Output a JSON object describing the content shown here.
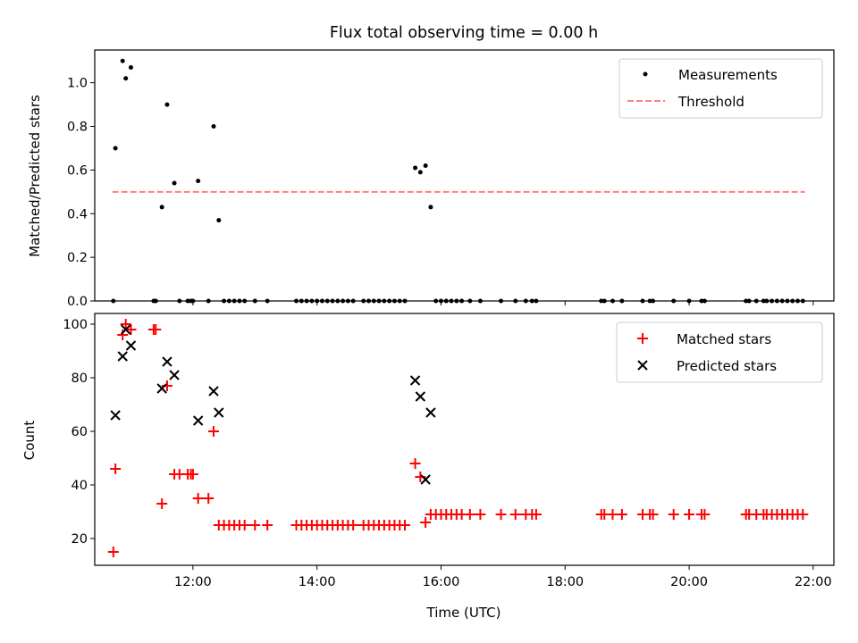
{
  "title": "Flux total observing time = 0.00 h",
  "chart_data": [
    {
      "type": "scatter",
      "ylabel": "Matched/Predicted stars",
      "ylim": [
        0,
        1.15
      ],
      "yticks": [
        "0.0",
        "0.2",
        "0.4",
        "0.6",
        "0.8",
        "1.0"
      ],
      "xlim": [
        "10:25",
        "22:20"
      ],
      "legend_position": "top-right",
      "legend": [
        {
          "label": "Measurements",
          "marker": "dot",
          "color": "#000000"
        },
        {
          "label": "Threshold",
          "marker": "dashed-line",
          "color": "#ff7f7f"
        }
      ],
      "threshold": {
        "value": 0.5,
        "x_start": "10:42",
        "x_end": "21:52",
        "color": "#ff7f7f"
      },
      "series": [
        {
          "marker": "dot",
          "color": "#000000",
          "points": [
            [
              "10:43",
              0
            ],
            [
              "10:45",
              0.7
            ],
            [
              "10:52",
              1.1
            ],
            [
              "10:55",
              1.02
            ],
            [
              "11:00",
              1.07
            ],
            [
              "11:22",
              0
            ],
            [
              "11:24",
              0
            ],
            [
              "11:30",
              0.43
            ],
            [
              "11:35",
              0.9
            ],
            [
              "11:42",
              0.54
            ],
            [
              "11:47",
              0
            ],
            [
              "11:55",
              0
            ],
            [
              "11:58",
              0
            ],
            [
              "12:00",
              0
            ],
            [
              "12:05",
              0.55
            ],
            [
              "12:15",
              0
            ],
            [
              "12:20",
              0.8
            ],
            [
              "12:25",
              0.37
            ],
            [
              "12:30",
              0
            ],
            [
              "12:35",
              0
            ],
            [
              "12:40",
              0
            ],
            [
              "12:45",
              0
            ],
            [
              "12:50",
              0
            ],
            [
              "13:00",
              0
            ],
            [
              "13:12",
              0
            ],
            [
              "13:40",
              0
            ],
            [
              "13:45",
              0
            ],
            [
              "13:50",
              0
            ],
            [
              "13:55",
              0
            ],
            [
              "14:00",
              0
            ],
            [
              "14:05",
              0
            ],
            [
              "14:10",
              0
            ],
            [
              "14:15",
              0
            ],
            [
              "14:20",
              0
            ],
            [
              "14:25",
              0
            ],
            [
              "14:30",
              0
            ],
            [
              "14:35",
              0
            ],
            [
              "14:45",
              0
            ],
            [
              "14:50",
              0
            ],
            [
              "14:55",
              0
            ],
            [
              "15:00",
              0
            ],
            [
              "15:05",
              0
            ],
            [
              "15:10",
              0
            ],
            [
              "15:15",
              0
            ],
            [
              "15:20",
              0
            ],
            [
              "15:25",
              0
            ],
            [
              "15:35",
              0.61
            ],
            [
              "15:40",
              0.59
            ],
            [
              "15:45",
              0.62
            ],
            [
              "15:50",
              0.43
            ],
            [
              "15:55",
              0
            ],
            [
              "16:00",
              0
            ],
            [
              "16:05",
              0
            ],
            [
              "16:10",
              0
            ],
            [
              "16:15",
              0
            ],
            [
              "16:20",
              0
            ],
            [
              "16:28",
              0
            ],
            [
              "16:38",
              0
            ],
            [
              "16:58",
              0
            ],
            [
              "17:12",
              0
            ],
            [
              "17:22",
              0
            ],
            [
              "17:28",
              0
            ],
            [
              "17:32",
              0
            ],
            [
              "18:35",
              0
            ],
            [
              "18:38",
              0
            ],
            [
              "18:46",
              0
            ],
            [
              "18:55",
              0
            ],
            [
              "19:15",
              0
            ],
            [
              "19:22",
              0
            ],
            [
              "19:25",
              0
            ],
            [
              "19:45",
              0
            ],
            [
              "20:00",
              0
            ],
            [
              "20:12",
              0
            ],
            [
              "20:15",
              0
            ],
            [
              "20:55",
              0
            ],
            [
              "20:58",
              0
            ],
            [
              "21:05",
              0
            ],
            [
              "21:12",
              0
            ],
            [
              "21:15",
              0
            ],
            [
              "21:20",
              0
            ],
            [
              "21:25",
              0
            ],
            [
              "21:30",
              0
            ],
            [
              "21:35",
              0
            ],
            [
              "21:40",
              0
            ],
            [
              "21:45",
              0
            ],
            [
              "21:50",
              0
            ]
          ]
        }
      ]
    },
    {
      "type": "scatter",
      "xlabel": "Time (UTC)",
      "ylabel": "Count",
      "ylim": [
        10,
        104
      ],
      "yticks": [
        "20",
        "40",
        "60",
        "80",
        "100"
      ],
      "xlim": [
        "10:25",
        "22:20"
      ],
      "xticks": [
        "12:00",
        "14:00",
        "16:00",
        "18:00",
        "20:00",
        "22:00"
      ],
      "legend_position": "top-right",
      "legend": [
        {
          "label": "Matched stars",
          "marker": "plus",
          "color": "#ff0000"
        },
        {
          "label": "Predicted stars",
          "marker": "x",
          "color": "#000000"
        }
      ],
      "series": [
        {
          "name": "Matched stars",
          "marker": "plus",
          "color": "#ff0000",
          "points": [
            [
              "10:43",
              15
            ],
            [
              "10:45",
              46
            ],
            [
              "10:52",
              96
            ],
            [
              "10:55",
              100
            ],
            [
              "11:00",
              98
            ],
            [
              "11:22",
              98
            ],
            [
              "11:24",
              98
            ],
            [
              "11:30",
              33
            ],
            [
              "11:35",
              77
            ],
            [
              "11:42",
              44
            ],
            [
              "11:47",
              44
            ],
            [
              "11:55",
              44
            ],
            [
              "11:58",
              44
            ],
            [
              "12:00",
              44
            ],
            [
              "12:05",
              35
            ],
            [
              "12:15",
              35
            ],
            [
              "12:20",
              60
            ],
            [
              "12:25",
              25
            ],
            [
              "12:30",
              25
            ],
            [
              "12:35",
              25
            ],
            [
              "12:40",
              25
            ],
            [
              "12:45",
              25
            ],
            [
              "12:50",
              25
            ],
            [
              "13:00",
              25
            ],
            [
              "13:12",
              25
            ],
            [
              "13:40",
              25
            ],
            [
              "13:45",
              25
            ],
            [
              "13:50",
              25
            ],
            [
              "13:55",
              25
            ],
            [
              "14:00",
              25
            ],
            [
              "14:05",
              25
            ],
            [
              "14:10",
              25
            ],
            [
              "14:15",
              25
            ],
            [
              "14:20",
              25
            ],
            [
              "14:25",
              25
            ],
            [
              "14:30",
              25
            ],
            [
              "14:35",
              25
            ],
            [
              "14:45",
              25
            ],
            [
              "14:50",
              25
            ],
            [
              "14:55",
              25
            ],
            [
              "15:00",
              25
            ],
            [
              "15:05",
              25
            ],
            [
              "15:10",
              25
            ],
            [
              "15:15",
              25
            ],
            [
              "15:20",
              25
            ],
            [
              "15:25",
              25
            ],
            [
              "15:35",
              48
            ],
            [
              "15:40",
              43
            ],
            [
              "15:45",
              26
            ],
            [
              "15:50",
              29
            ],
            [
              "15:55",
              29
            ],
            [
              "16:00",
              29
            ],
            [
              "16:05",
              29
            ],
            [
              "16:10",
              29
            ],
            [
              "16:15",
              29
            ],
            [
              "16:20",
              29
            ],
            [
              "16:28",
              29
            ],
            [
              "16:38",
              29
            ],
            [
              "16:58",
              29
            ],
            [
              "17:12",
              29
            ],
            [
              "17:22",
              29
            ],
            [
              "17:28",
              29
            ],
            [
              "17:32",
              29
            ],
            [
              "18:35",
              29
            ],
            [
              "18:38",
              29
            ],
            [
              "18:46",
              29
            ],
            [
              "18:55",
              29
            ],
            [
              "19:15",
              29
            ],
            [
              "19:22",
              29
            ],
            [
              "19:25",
              29
            ],
            [
              "19:45",
              29
            ],
            [
              "20:00",
              29
            ],
            [
              "20:12",
              29
            ],
            [
              "20:15",
              29
            ],
            [
              "20:55",
              29
            ],
            [
              "20:58",
              29
            ],
            [
              "21:05",
              29
            ],
            [
              "21:12",
              29
            ],
            [
              "21:15",
              29
            ],
            [
              "21:20",
              29
            ],
            [
              "21:25",
              29
            ],
            [
              "21:30",
              29
            ],
            [
              "21:35",
              29
            ],
            [
              "21:40",
              29
            ],
            [
              "21:45",
              29
            ],
            [
              "21:50",
              29
            ]
          ]
        },
        {
          "name": "Predicted stars",
          "marker": "x",
          "color": "#000000",
          "points": [
            [
              "10:45",
              66
            ],
            [
              "10:52",
              88
            ],
            [
              "10:55",
              98
            ],
            [
              "11:00",
              92
            ],
            [
              "11:30",
              76
            ],
            [
              "11:35",
              86
            ],
            [
              "11:42",
              81
            ],
            [
              "12:05",
              64
            ],
            [
              "12:20",
              75
            ],
            [
              "12:25",
              67
            ],
            [
              "15:35",
              79
            ],
            [
              "15:40",
              73
            ],
            [
              "15:45",
              42
            ],
            [
              "15:50",
              67
            ]
          ]
        }
      ]
    }
  ]
}
